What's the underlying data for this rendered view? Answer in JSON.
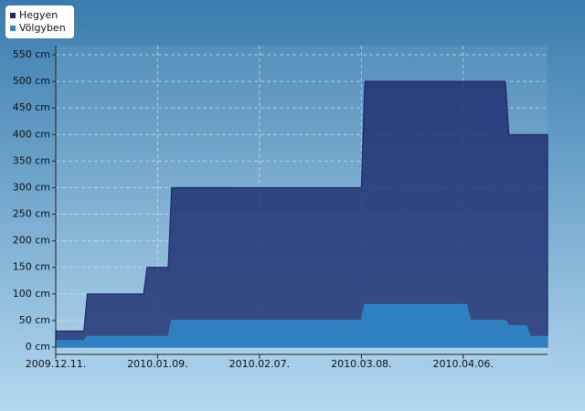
{
  "chart_data": {
    "type": "area",
    "x": [
      "2009.12.11.",
      "2009.12.19.",
      "2009.12.20.",
      "2010.01.05.",
      "2010.01.06.",
      "2010.01.12.",
      "2010.01.13.",
      "2010.03.08.",
      "2010.03.09.",
      "2010.04.07.",
      "2010.04.08.",
      "2010.04.18.",
      "2010.04.19.",
      "2010.04.24.",
      "2010.04.25.",
      "2010.04.30."
    ],
    "series": [
      {
        "name": "Hegyen",
        "color": "#1b2a6b",
        "values": [
          30,
          30,
          100,
          100,
          150,
          150,
          300,
          300,
          500,
          500,
          500,
          500,
          400,
          400,
          400,
          400
        ]
      },
      {
        "name": "Völgyben",
        "color": "#2f86c8",
        "values": [
          12,
          12,
          20,
          20,
          20,
          20,
          50,
          50,
          80,
          80,
          50,
          50,
          40,
          40,
          20,
          20
        ]
      }
    ],
    "xlim": [
      "2009.12.11.",
      "2010.04.30."
    ],
    "xticks": [
      "2009.12.11.",
      "2010.01.09.",
      "2010.02.07.",
      "2010.03.08.",
      "2010.04.06."
    ],
    "ylim": [
      0,
      550
    ],
    "yticks": [
      {
        "value": 0,
        "label": "0 cm"
      },
      {
        "value": 50,
        "label": "50 cm"
      },
      {
        "value": 100,
        "label": "100 cm"
      },
      {
        "value": 150,
        "label": "150 cm"
      },
      {
        "value": 200,
        "label": "200 cm"
      },
      {
        "value": 250,
        "label": "250 cm"
      },
      {
        "value": 300,
        "label": "300 cm"
      },
      {
        "value": 350,
        "label": "350 cm"
      },
      {
        "value": 400,
        "label": "400 cm"
      },
      {
        "value": 450,
        "label": "450 cm"
      },
      {
        "value": 500,
        "label": "500 cm"
      },
      {
        "value": 550,
        "label": "550 cm"
      }
    ],
    "grid": true,
    "legend": "top-left"
  }
}
